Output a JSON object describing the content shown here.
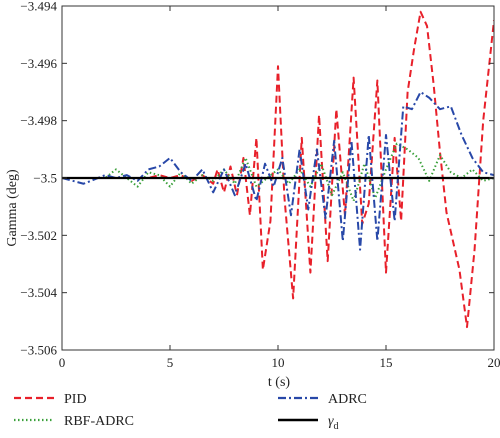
{
  "chart_data": {
    "type": "line",
    "xlabel": "t (s)",
    "ylabel": "Gamma (deg)",
    "xlim": [
      0,
      20
    ],
    "ylim": [
      -3.506,
      -3.494
    ],
    "xticks": [
      0,
      5,
      10,
      15,
      20
    ],
    "xtick_labels": [
      "0",
      "5",
      "10",
      "15",
      "20"
    ],
    "yticks": [
      -3.506,
      -3.504,
      -3.502,
      -3.5,
      -3.498,
      -3.496,
      -3.494
    ],
    "ytick_labels": [
      "-3.506",
      "-3.504",
      "-3.502",
      "-3.5",
      "-3.498",
      "-3.496",
      "-3.494"
    ],
    "grid": false,
    "legend_placement": "below",
    "series": [
      {
        "name": "PID",
        "color": "#e8202a",
        "dash": "dashed",
        "x": [
          0,
          1,
          2,
          3,
          4,
          4.5,
          5,
          5.5,
          6,
          6.5,
          7,
          7.2,
          7.5,
          7.8,
          8.1,
          8.4,
          8.7,
          9.0,
          9.3,
          9.65,
          10.0,
          10.3,
          10.7,
          11.1,
          11.5,
          11.9,
          12.3,
          12.7,
          13.1,
          13.5,
          13.9,
          14.2,
          14.6,
          15.0,
          15.4,
          15.7,
          16.0,
          16.3,
          16.6,
          16.9,
          17.2,
          17.5,
          17.8,
          18.1,
          18.4,
          18.75,
          19.1,
          19.5,
          20.0
        ],
        "y": [
          -3.5,
          -3.5,
          -3.5,
          -3.5,
          -3.5,
          -3.4999,
          -3.5,
          -3.4999,
          -3.5001,
          -3.4999,
          -3.5002,
          -3.4997,
          -3.5005,
          -3.4996,
          -3.5006,
          -3.4993,
          -3.5013,
          -3.4986,
          -3.5032,
          -3.5015,
          -3.4961,
          -3.5007,
          -3.5042,
          -3.4986,
          -3.5033,
          -3.4978,
          -3.5029,
          -3.4976,
          -3.5013,
          -3.4965,
          -3.5016,
          -3.5009,
          -3.4966,
          -3.5033,
          -3.4986,
          -3.5015,
          -3.497,
          -3.4955,
          -3.4942,
          -3.4947,
          -3.4967,
          -3.4991,
          -3.5012,
          -3.5022,
          -3.5032,
          -3.5052,
          -3.5025,
          -3.498,
          -3.4945
        ]
      },
      {
        "name": "RBF-ADRC",
        "color": "#3aa03a",
        "dash": "dotted",
        "x": [
          0,
          1,
          2,
          2.5,
          3,
          3.5,
          4,
          4.5,
          5,
          5.5,
          6,
          6.5,
          7,
          7.5,
          8,
          8.5,
          9,
          9.5,
          10,
          10.5,
          11,
          11.5,
          12,
          12.5,
          13,
          13.5,
          14,
          14.5,
          15,
          15.5,
          16,
          16.5,
          17,
          17.5,
          18,
          18.5,
          19,
          19.5,
          20
        ],
        "y": [
          -3.5,
          -3.5,
          -3.5,
          -3.4997,
          -3.5,
          -3.5003,
          -3.4998,
          -3.4999,
          -3.5003,
          -3.4998,
          -3.5002,
          -3.4999,
          -3.5001,
          -3.4997,
          -3.5002,
          -3.4993,
          -3.5003,
          -3.5,
          -3.4997,
          -3.5002,
          -3.4997,
          -3.5003,
          -3.4995,
          -3.5006,
          -3.4998,
          -3.5008,
          -3.4995,
          -3.5007,
          -3.4997,
          -3.4988,
          -3.499,
          -3.4993,
          -3.5001,
          -3.4992,
          -3.4998,
          -3.5,
          -3.4997,
          -3.5001,
          -3.5
        ]
      },
      {
        "name": "ADRC",
        "color": "#2848a8",
        "dash": "dashdot",
        "x": [
          0,
          1,
          2,
          2.5,
          3,
          3.5,
          4,
          4.5,
          5,
          5.5,
          6,
          6.5,
          7,
          7.5,
          8,
          8.5,
          9,
          9.4,
          9.8,
          10.2,
          10.6,
          11.0,
          11.4,
          11.8,
          12.2,
          12.6,
          13.0,
          13.4,
          13.8,
          14.2,
          14.6,
          15.0,
          15.4,
          15.8,
          16.2,
          16.6,
          17.0,
          17.5,
          18.0,
          18.5,
          19.0,
          19.5,
          20
        ],
        "y": [
          -3.5,
          -3.5002,
          -3.4999,
          -3.5,
          -3.4999,
          -3.5001,
          -3.4997,
          -3.4996,
          -3.4993,
          -3.4998,
          -3.5001,
          -3.4997,
          -3.5005,
          -3.4997,
          -3.5006,
          -3.4995,
          -3.5008,
          -3.4995,
          -3.5003,
          -3.4993,
          -3.5013,
          -3.499,
          -3.5011,
          -3.499,
          -3.5014,
          -3.4987,
          -3.5022,
          -3.4987,
          -3.5025,
          -3.4985,
          -3.5022,
          -3.4985,
          -3.5015,
          -3.4975,
          -3.4976,
          -3.497,
          -3.4972,
          -3.4976,
          -3.4975,
          -3.4985,
          -3.4993,
          -3.4998,
          -3.4999
        ]
      },
      {
        "name": "γd",
        "color": "#000000",
        "dash": "solid",
        "x": [
          0,
          20
        ],
        "y": [
          -3.5,
          -3.5
        ]
      }
    ]
  }
}
